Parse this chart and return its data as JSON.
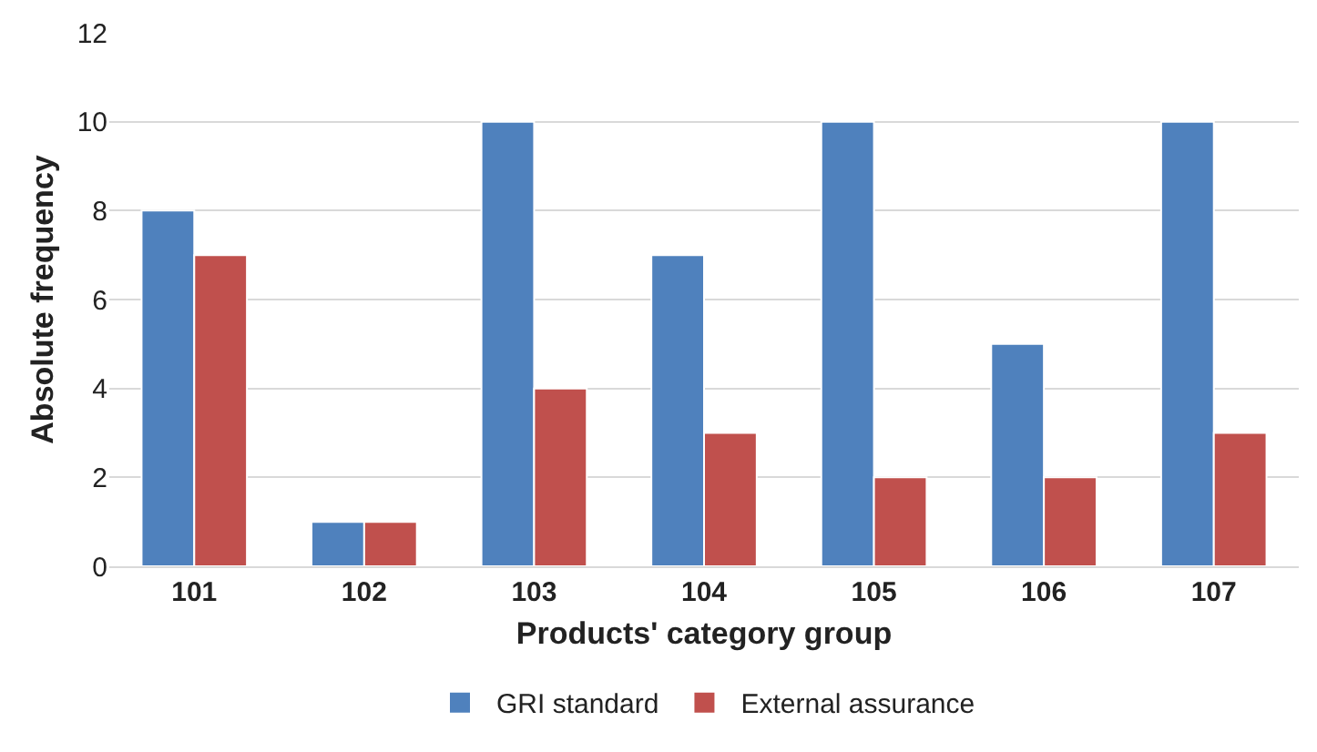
{
  "chart_data": {
    "type": "bar",
    "xlabel": "Products' category group",
    "ylabel": "Absolute frequency",
    "categories": [
      "101",
      "102",
      "103",
      "104",
      "105",
      "106",
      "107"
    ],
    "series": [
      {
        "name": "GRI standard",
        "color": "#4f81bd",
        "values": [
          8,
          1,
          10,
          7,
          10,
          5,
          10
        ]
      },
      {
        "name": "External assurance",
        "color": "#c0504d",
        "values": [
          7,
          1,
          4,
          3,
          2,
          2,
          3
        ]
      }
    ],
    "ylim": [
      0,
      12
    ],
    "yticks": [
      0,
      2,
      4,
      6,
      8,
      10,
      12
    ],
    "grid": "y",
    "legend": "bottom"
  }
}
